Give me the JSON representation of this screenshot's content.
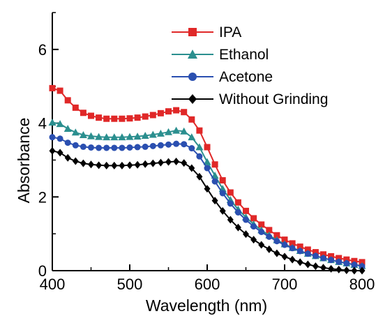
{
  "chart_data": {
    "type": "line",
    "xlabel": "Wavelength (nm)",
    "ylabel": "Absorbance",
    "xlim": [
      400,
      800
    ],
    "ylim": [
      0,
      7
    ],
    "x_ticks": [
      "400",
      "500",
      "600",
      "700",
      "800"
    ],
    "y_ticks": [
      "0",
      "2",
      "4",
      "6"
    ],
    "legend_position": "top-right",
    "grid": false,
    "x": [
      400,
      410,
      420,
      430,
      440,
      450,
      460,
      470,
      480,
      490,
      500,
      510,
      520,
      530,
      540,
      550,
      560,
      570,
      580,
      590,
      600,
      610,
      620,
      630,
      640,
      650,
      660,
      670,
      680,
      690,
      700,
      710,
      720,
      730,
      740,
      750,
      760,
      770,
      780,
      790,
      800
    ],
    "series": [
      {
        "name": "IPA",
        "color": "#e02828",
        "marker": "square",
        "values": [
          4.95,
          4.88,
          4.62,
          4.42,
          4.28,
          4.2,
          4.15,
          4.12,
          4.12,
          4.12,
          4.13,
          4.15,
          4.18,
          4.22,
          4.27,
          4.32,
          4.35,
          4.3,
          4.1,
          3.8,
          3.35,
          2.88,
          2.45,
          2.12,
          1.85,
          1.62,
          1.42,
          1.25,
          1.1,
          0.96,
          0.84,
          0.74,
          0.65,
          0.57,
          0.5,
          0.44,
          0.39,
          0.34,
          0.3,
          0.26,
          0.23
        ]
      },
      {
        "name": "Ethanol",
        "color": "#2b8f8f",
        "marker": "triangle",
        "values": [
          4.02,
          3.98,
          3.85,
          3.75,
          3.68,
          3.65,
          3.63,
          3.62,
          3.62,
          3.62,
          3.63,
          3.64,
          3.66,
          3.69,
          3.72,
          3.76,
          3.8,
          3.78,
          3.62,
          3.35,
          2.95,
          2.58,
          2.22,
          1.92,
          1.66,
          1.45,
          1.26,
          1.1,
          0.96,
          0.83,
          0.72,
          0.62,
          0.54,
          0.46,
          0.4,
          0.34,
          0.29,
          0.24,
          0.2,
          0.16,
          0.13
        ]
      },
      {
        "name": "Acetone",
        "color": "#2a4fb0",
        "marker": "circle",
        "values": [
          3.62,
          3.58,
          3.47,
          3.4,
          3.36,
          3.34,
          3.33,
          3.33,
          3.33,
          3.33,
          3.34,
          3.35,
          3.36,
          3.38,
          3.4,
          3.42,
          3.44,
          3.43,
          3.32,
          3.1,
          2.78,
          2.42,
          2.1,
          1.82,
          1.58,
          1.38,
          1.2,
          1.05,
          0.92,
          0.8,
          0.7,
          0.61,
          0.53,
          0.46,
          0.4,
          0.34,
          0.29,
          0.24,
          0.2,
          0.16,
          0.12
        ]
      },
      {
        "name": "Without Grinding",
        "color": "#000000",
        "marker": "diamond",
        "values": [
          3.25,
          3.2,
          3.06,
          2.97,
          2.91,
          2.88,
          2.86,
          2.85,
          2.85,
          2.85,
          2.86,
          2.87,
          2.89,
          2.91,
          2.93,
          2.95,
          2.96,
          2.92,
          2.78,
          2.55,
          2.22,
          1.9,
          1.62,
          1.38,
          1.17,
          0.99,
          0.84,
          0.7,
          0.58,
          0.47,
          0.38,
          0.3,
          0.23,
          0.17,
          0.12,
          0.08,
          0.05,
          0.03,
          0.01,
          0.0,
          0.0
        ]
      }
    ]
  }
}
